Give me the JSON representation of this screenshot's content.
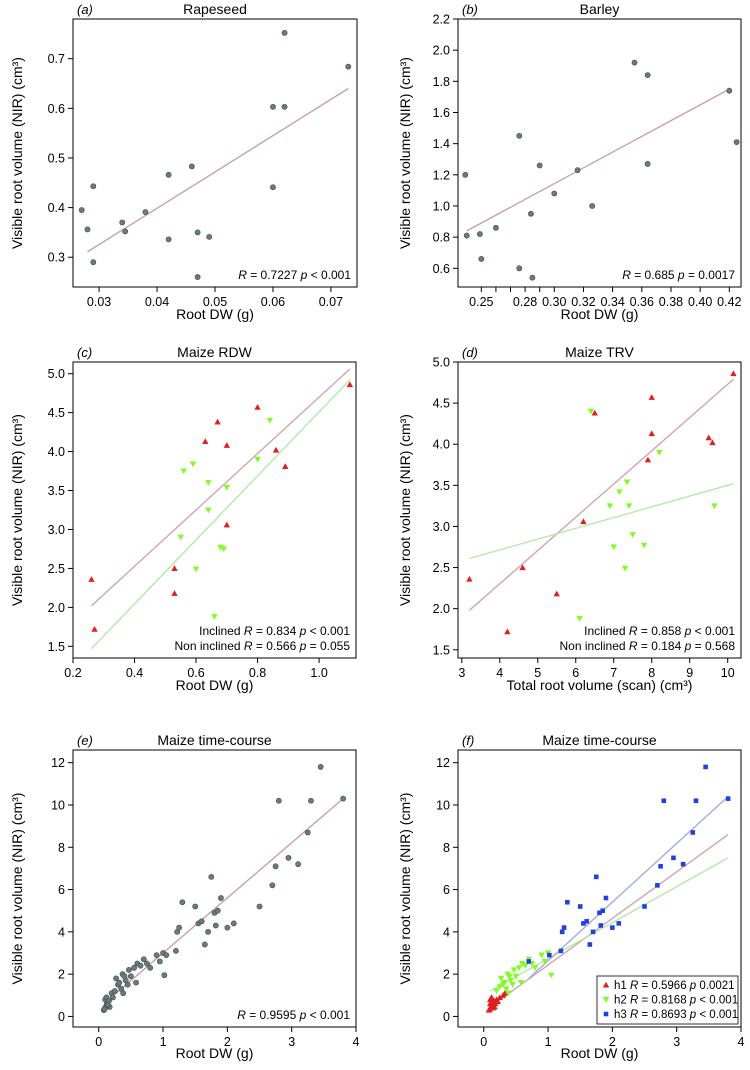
{
  "chart_data": [
    {
      "panel": "(a)",
      "type": "scatter",
      "title": "Rapeseed",
      "xlabel": "Root DW (g)",
      "ylabel": "Visible root volume (NIR) (cm³)",
      "xlim": [
        0.0255,
        0.0745
      ],
      "ylim": [
        0.24,
        0.78
      ],
      "xticks": [
        0.03,
        0.04,
        0.05,
        0.06,
        0.07
      ],
      "xtick_labels": [
        "0.03",
        "0.04",
        "0.05",
        "0.06",
        "0.07"
      ],
      "yticks": [
        0.3,
        0.4,
        0.5,
        0.6,
        0.7
      ],
      "ytick_labels": [
        "0.3",
        "0.4",
        "0.5",
        "0.6",
        "0.7"
      ],
      "series": [
        {
          "marker": "circle",
          "color": "#6b7b7b",
          "x": [
            0.027,
            0.028,
            0.029,
            0.029,
            0.034,
            0.0345,
            0.038,
            0.042,
            0.042,
            0.046,
            0.047,
            0.047,
            0.049,
            0.06,
            0.06,
            0.062,
            0.062,
            0.073
          ],
          "y": [
            0.395,
            0.356,
            0.29,
            0.443,
            0.37,
            0.352,
            0.391,
            0.466,
            0.336,
            0.483,
            0.35,
            0.26,
            0.341,
            0.603,
            0.441,
            0.603,
            0.752,
            0.684
          ]
        }
      ],
      "fits": [
        {
          "color": "#c9a0a8",
          "x": [
            0.028,
            0.073
          ],
          "y": [
            0.311,
            0.64
          ]
        }
      ],
      "stats": [
        {
          "text": "R = 0.7227 p < 0.001"
        }
      ]
    },
    {
      "panel": "(b)",
      "type": "scatter",
      "title": "Barley",
      "xlabel": "Root DW (g)",
      "ylabel": "Visible root volume (NIR) (cm³)",
      "xlim": [
        0.234,
        0.428
      ],
      "ylim": [
        0.48,
        2.2
      ],
      "xticks": [
        0.25,
        0.26,
        0.27,
        0.28,
        0.29,
        0.3,
        0.32,
        0.34,
        0.36,
        0.38,
        0.4,
        0.42
      ],
      "xtick_labels": [
        "0.25",
        "",
        "",
        "0.28",
        "",
        "0.30",
        "0.32",
        "0.34",
        "0.36",
        "0.38",
        "0.40",
        "0.42"
      ],
      "yticks": [
        0.6,
        0.8,
        1.0,
        1.2,
        1.4,
        1.6,
        1.8,
        2.0,
        2.2
      ],
      "ytick_labels": [
        "0.6",
        "0.8",
        "1.0",
        "1.2",
        "1.4",
        "1.6",
        "1.8",
        "2.0",
        "2.2"
      ],
      "series": [
        {
          "marker": "circle",
          "color": "#6b7b7b",
          "x": [
            0.239,
            0.24,
            0.249,
            0.25,
            0.26,
            0.276,
            0.276,
            0.284,
            0.285,
            0.29,
            0.3,
            0.316,
            0.326,
            0.355,
            0.364,
            0.364,
            0.42,
            0.425
          ],
          "y": [
            1.2,
            0.81,
            0.82,
            0.66,
            0.86,
            1.45,
            0.6,
            0.95,
            0.54,
            1.26,
            1.08,
            1.23,
            1.0,
            1.92,
            1.84,
            1.27,
            1.74,
            1.41
          ]
        }
      ],
      "fits": [
        {
          "color": "#c9a0a8",
          "x": [
            0.24,
            0.42
          ],
          "y": [
            0.84,
            1.75
          ]
        }
      ],
      "stats": [
        {
          "text": "R = 0.685 p = 0.0017"
        }
      ]
    },
    {
      "panel": "(c)",
      "type": "scatter",
      "title": "Maize RDW",
      "xlabel": "Root DW (g)",
      "ylabel": "Visible root volume (NIR) (cm³)",
      "xlim": [
        0.2,
        1.12
      ],
      "ylim": [
        1.35,
        5.15
      ],
      "xticks": [
        0.2,
        0.4,
        0.6,
        0.8,
        1.0
      ],
      "xtick_labels": [
        "0.2",
        "0.4",
        "0.6",
        "0.8",
        "1.0"
      ],
      "yticks": [
        1.5,
        2.0,
        2.5,
        3.0,
        3.5,
        4.0,
        4.5,
        5.0
      ],
      "ytick_labels": [
        "1.5",
        "2.0",
        "2.5",
        "3.0",
        "3.5",
        "4.0",
        "4.5",
        "5.0"
      ],
      "series": [
        {
          "name": "Inclined",
          "marker": "triangle-up",
          "color": "#e02020",
          "x": [
            0.26,
            0.27,
            0.53,
            0.53,
            0.63,
            0.67,
            0.7,
            0.7,
            0.8,
            0.86,
            0.89,
            1.1
          ],
          "y": [
            2.36,
            1.72,
            2.5,
            2.18,
            4.13,
            4.38,
            4.08,
            3.06,
            4.57,
            4.02,
            3.81,
            4.86
          ]
        },
        {
          "name": "Non inclined",
          "marker": "triangle-down",
          "color": "#7cff20",
          "x": [
            0.55,
            0.56,
            0.59,
            0.6,
            0.64,
            0.64,
            0.66,
            0.68,
            0.69,
            0.7,
            0.8,
            0.84
          ],
          "y": [
            2.9,
            3.75,
            3.84,
            2.49,
            3.25,
            3.6,
            1.88,
            2.77,
            2.75,
            3.54,
            3.9,
            4.4
          ]
        }
      ],
      "fits": [
        {
          "color": "#d4a4ae",
          "x": [
            0.26,
            1.1
          ],
          "y": [
            2.02,
            5.06
          ]
        },
        {
          "color": "#b6e8a8",
          "x": [
            0.26,
            1.1
          ],
          "y": [
            1.47,
            4.92
          ]
        }
      ],
      "stats": [
        {
          "text": "Inclined R = 0.834 p < 0.001"
        },
        {
          "text": "Non inclined R = 0.566 p = 0.055"
        }
      ]
    },
    {
      "panel": "(d)",
      "type": "scatter",
      "title": "Maize TRV",
      "xlabel": "Total root volume (scan) (cm³)",
      "ylabel": "Visible root volume (NIR) (cm³)",
      "xlim": [
        2.9,
        10.35
      ],
      "ylim": [
        1.4,
        5.0
      ],
      "xticks": [
        3,
        4,
        5,
        6,
        7,
        8,
        9,
        10
      ],
      "xtick_labels": [
        "3",
        "4",
        "5",
        "6",
        "7",
        "8",
        "9",
        "10"
      ],
      "yticks": [
        1.5,
        2.0,
        2.5,
        3.0,
        3.5,
        4.0,
        4.5,
        5.0
      ],
      "ytick_labels": [
        "1.5",
        "2.0",
        "2.5",
        "3.0",
        "3.5",
        "4.0",
        "4.5",
        "5.0"
      ],
      "series": [
        {
          "name": "Inclined",
          "marker": "triangle-up",
          "color": "#e02020",
          "x": [
            3.2,
            4.2,
            4.6,
            5.5,
            6.2,
            6.5,
            7.9,
            8.0,
            8.0,
            9.5,
            9.6,
            10.15
          ],
          "y": [
            2.36,
            1.72,
            2.5,
            2.18,
            3.06,
            4.38,
            3.81,
            4.13,
            4.57,
            4.08,
            4.02,
            4.86
          ]
        },
        {
          "name": "Non inclined",
          "marker": "triangle-down",
          "color": "#7cff20",
          "x": [
            6.1,
            6.4,
            6.9,
            7.0,
            7.15,
            7.3,
            7.35,
            7.4,
            7.5,
            7.8,
            8.2,
            9.65
          ],
          "y": [
            1.88,
            4.4,
            3.25,
            2.75,
            3.42,
            2.49,
            3.54,
            3.25,
            2.9,
            2.77,
            3.9,
            3.25
          ]
        }
      ],
      "fits": [
        {
          "color": "#d4a4ae",
          "x": [
            3.2,
            10.15
          ],
          "y": [
            1.98,
            4.79
          ]
        },
        {
          "color": "#b6e8a8",
          "x": [
            3.2,
            10.15
          ],
          "y": [
            2.61,
            3.52
          ]
        }
      ],
      "stats": [
        {
          "text": "Inclined R = 0.858 p < 0.001"
        },
        {
          "text": "Non inclined R = 0.184 p = 0.568"
        }
      ]
    },
    {
      "panel": "(e)",
      "type": "scatter",
      "title": "Maize time-course",
      "xlabel": "Root DW (g)",
      "ylabel": "Visible root volume (NIR) (cm³)",
      "xlim": [
        -0.4,
        4.0
      ],
      "ylim": [
        -0.5,
        12.6
      ],
      "xticks": [
        0,
        1,
        2,
        3,
        4
      ],
      "xtick_labels": [
        "0",
        "1",
        "2",
        "3",
        "4"
      ],
      "yticks": [
        0,
        2,
        4,
        6,
        8,
        10,
        12
      ],
      "ytick_labels": [
        "0",
        "2",
        "4",
        "6",
        "8",
        "10",
        "12"
      ],
      "series": [
        {
          "marker": "circle",
          "color": "#6b7b7b",
          "x": [
            0.08,
            0.1,
            0.12,
            0.13,
            0.15,
            0.17,
            0.1,
            0.12,
            0.14,
            0.09,
            0.16,
            0.2,
            0.22,
            0.25,
            0.27,
            0.3,
            0.32,
            0.35,
            0.37,
            0.38,
            0.4,
            0.42,
            0.45,
            0.47,
            0.5,
            0.55,
            0.58,
            0.6,
            0.65,
            0.7,
            0.75,
            0.8,
            0.9,
            0.95,
            1.0,
            1.02,
            1.05,
            1.2,
            1.22,
            1.25,
            1.3,
            1.5,
            1.55,
            1.6,
            1.65,
            1.7,
            1.75,
            1.8,
            1.82,
            1.85,
            1.9,
            2.0,
            2.1,
            2.5,
            2.7,
            2.75,
            2.8,
            2.95,
            3.1,
            3.25,
            3.3,
            3.45,
            3.8
          ],
          "y": [
            0.3,
            0.4,
            0.5,
            0.6,
            0.7,
            0.45,
            0.8,
            0.9,
            0.55,
            0.35,
            0.75,
            1.1,
            0.9,
            1.2,
            1.8,
            1.5,
            1.6,
            1.3,
            2.0,
            1.1,
            1.9,
            1.7,
            1.5,
            2.2,
            1.9,
            2.3,
            1.6,
            2.5,
            2.4,
            2.7,
            2.5,
            2.3,
            2.9,
            2.6,
            3.0,
            1.95,
            2.9,
            3.1,
            4.0,
            4.2,
            5.4,
            5.2,
            4.4,
            4.5,
            3.4,
            4.0,
            6.6,
            4.9,
            4.3,
            5.0,
            5.6,
            4.2,
            4.4,
            5.2,
            6.2,
            7.1,
            10.2,
            7.5,
            7.2,
            8.7,
            10.2,
            11.8,
            10.3
          ]
        }
      ],
      "fits": [
        {
          "color": "#c9a0a8",
          "x": [
            0.08,
            3.8
          ],
          "y": [
            0.6,
            10.3
          ]
        }
      ],
      "stats": [
        {
          "text": "R = 0.9595 p < 0.001"
        }
      ]
    },
    {
      "panel": "(f)",
      "type": "scatter",
      "title": "Maize time-course",
      "xlabel": "Root DW (g)",
      "ylabel": "Visible root volume (NIR) (cm³)",
      "xlim": [
        -0.4,
        4.0
      ],
      "ylim": [
        -0.5,
        12.6
      ],
      "xticks": [
        0,
        1,
        2,
        3,
        4
      ],
      "xtick_labels": [
        "0",
        "1",
        "2",
        "3",
        "4"
      ],
      "yticks": [
        0,
        2,
        4,
        6,
        8,
        10,
        12
      ],
      "ytick_labels": [
        "0",
        "2",
        "4",
        "6",
        "8",
        "10",
        "12"
      ],
      "legend_position": "bottom-right",
      "series": [
        {
          "name": "h1",
          "marker": "triangle-up",
          "color": "#e02020",
          "x": [
            0.08,
            0.1,
            0.12,
            0.13,
            0.15,
            0.17,
            0.1,
            0.12,
            0.14,
            0.09,
            0.16,
            0.11,
            0.13,
            0.15,
            0.1,
            0.12,
            0.14,
            0.18,
            0.2,
            0.22,
            0.25,
            0.3,
            0.33
          ],
          "y": [
            0.3,
            0.4,
            0.5,
            0.6,
            0.7,
            0.45,
            0.8,
            0.9,
            0.55,
            0.35,
            0.75,
            0.65,
            0.85,
            0.5,
            0.6,
            0.7,
            0.4,
            0.6,
            0.8,
            0.7,
            0.9,
            1.0,
            1.1
          ]
        },
        {
          "name": "h2",
          "marker": "triangle-down",
          "color": "#7cff20",
          "x": [
            0.2,
            0.25,
            0.27,
            0.3,
            0.32,
            0.35,
            0.37,
            0.38,
            0.4,
            0.42,
            0.45,
            0.47,
            0.5,
            0.55,
            0.58,
            0.6,
            0.65,
            0.7,
            0.75,
            0.8,
            0.9,
            0.95,
            1.0,
            1.05
          ],
          "y": [
            1.2,
            1.4,
            1.8,
            1.5,
            1.6,
            1.3,
            2.0,
            1.1,
            1.9,
            1.7,
            1.5,
            2.2,
            1.9,
            2.3,
            1.6,
            2.5,
            2.4,
            2.7,
            2.5,
            2.3,
            2.9,
            2.6,
            3.0,
            1.95
          ]
        },
        {
          "name": "h3",
          "marker": "square",
          "color": "#2040e0",
          "x": [
            0.7,
            1.02,
            1.2,
            1.22,
            1.25,
            1.3,
            1.5,
            1.55,
            1.6,
            1.65,
            1.7,
            1.75,
            1.8,
            1.82,
            1.85,
            1.9,
            2.0,
            2.1,
            2.5,
            2.7,
            2.75,
            2.8,
            2.95,
            3.1,
            3.25,
            3.3,
            3.45,
            3.8
          ],
          "y": [
            2.6,
            2.9,
            3.1,
            4.0,
            4.2,
            5.4,
            5.2,
            4.4,
            4.5,
            3.4,
            4.0,
            6.6,
            4.9,
            4.3,
            5.0,
            5.6,
            4.2,
            4.4,
            5.2,
            6.2,
            7.1,
            10.2,
            7.5,
            7.2,
            8.7,
            10.2,
            11.8,
            10.3
          ]
        }
      ],
      "fits": [
        {
          "color": "#d4a4ae",
          "x": [
            0.1,
            3.8
          ],
          "y": [
            0.45,
            8.6
          ]
        },
        {
          "color": "#b6e8a8",
          "x": [
            0.1,
            3.8
          ],
          "y": [
            1.2,
            7.5
          ]
        },
        {
          "color": "#a8a8e8",
          "x": [
            0.7,
            3.8
          ],
          "y": [
            1.8,
            10.4
          ]
        }
      ],
      "stats": [
        {
          "text": "h1 R = 0.5966 p 0.0021"
        },
        {
          "text": "h2 R = 0.8168 p < 0.001"
        },
        {
          "text": "h3 R = 0.8693 p < 0.001"
        }
      ]
    }
  ]
}
